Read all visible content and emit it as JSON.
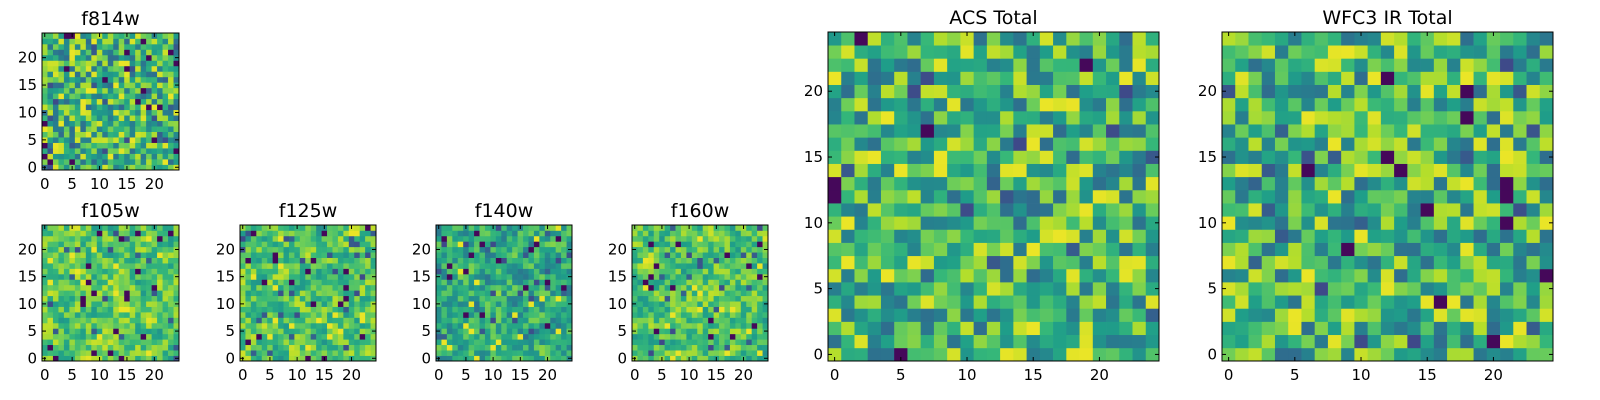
{
  "chart_data": [
    {
      "type": "heatmap",
      "title": "f814w",
      "shape": [
        25,
        25
      ],
      "colormap": "viridis",
      "seed": 11,
      "smooth": 0,
      "xticks": [
        0,
        5,
        10,
        15,
        20
      ],
      "yticks": [
        0,
        5,
        10,
        15,
        20
      ],
      "xlim": [
        -0.5,
        24.5
      ],
      "ylim": [
        -0.5,
        24.5
      ],
      "value_range": [
        0,
        1
      ],
      "style": "noise"
    },
    {
      "type": "heatmap",
      "title": "f105w",
      "shape": [
        25,
        25
      ],
      "colormap": "viridis",
      "seed": 23,
      "smooth": 1,
      "xticks": [
        0,
        5,
        10,
        15,
        20
      ],
      "yticks": [
        0,
        5,
        10,
        15,
        20
      ],
      "xlim": [
        -0.5,
        24.5
      ],
      "ylim": [
        -0.5,
        24.5
      ],
      "value_range": [
        0,
        1
      ],
      "style": "bright"
    },
    {
      "type": "heatmap",
      "title": "f125w",
      "shape": [
        25,
        25
      ],
      "colormap": "viridis",
      "seed": 37,
      "smooth": 1,
      "xticks": [
        0,
        5,
        10,
        15,
        20
      ],
      "yticks": [
        0,
        5,
        10,
        15,
        20
      ],
      "xlim": [
        -0.5,
        24.5
      ],
      "ylim": [
        -0.5,
        24.5
      ],
      "value_range": [
        0,
        1
      ],
      "style": "bright"
    },
    {
      "type": "heatmap",
      "title": "f140w",
      "shape": [
        25,
        25
      ],
      "colormap": "viridis",
      "seed": 41,
      "smooth": 1,
      "xticks": [
        0,
        5,
        10,
        15,
        20
      ],
      "yticks": [
        0,
        5,
        10,
        15,
        20
      ],
      "xlim": [
        -0.5,
        24.5
      ],
      "ylim": [
        -0.5,
        24.5
      ],
      "value_range": [
        0,
        1
      ],
      "style": "mid"
    },
    {
      "type": "heatmap",
      "title": "f160w",
      "shape": [
        25,
        25
      ],
      "colormap": "viridis",
      "seed": 53,
      "smooth": 1,
      "xticks": [
        0,
        5,
        10,
        15,
        20
      ],
      "yticks": [
        0,
        5,
        10,
        15,
        20
      ],
      "xlim": [
        -0.5,
        24.5
      ],
      "ylim": [
        -0.5,
        24.5
      ],
      "value_range": [
        0,
        1
      ],
      "style": "bright"
    },
    {
      "type": "heatmap",
      "title": "ACS Total",
      "shape": [
        25,
        25
      ],
      "colormap": "viridis",
      "seed": 67,
      "smooth": 0,
      "xticks": [
        0,
        5,
        10,
        15,
        20
      ],
      "yticks": [
        0,
        5,
        10,
        15,
        20
      ],
      "xlim": [
        -0.5,
        24.5
      ],
      "ylim": [
        -0.5,
        24.5
      ],
      "value_range": [
        0,
        1
      ],
      "style": "noise"
    },
    {
      "type": "heatmap",
      "title": "WFC3 IR Total",
      "shape": [
        25,
        25
      ],
      "colormap": "viridis",
      "seed": 79,
      "smooth": 0,
      "xticks": [
        0,
        5,
        10,
        15,
        20
      ],
      "yticks": [
        0,
        5,
        10,
        15,
        20
      ],
      "xlim": [
        -0.5,
        24.5
      ],
      "ylim": [
        -0.5,
        24.5
      ],
      "value_range": [
        0,
        1
      ],
      "style": "noise"
    }
  ],
  "colors": {
    "frame": "#000000",
    "background": "#ffffff"
  }
}
